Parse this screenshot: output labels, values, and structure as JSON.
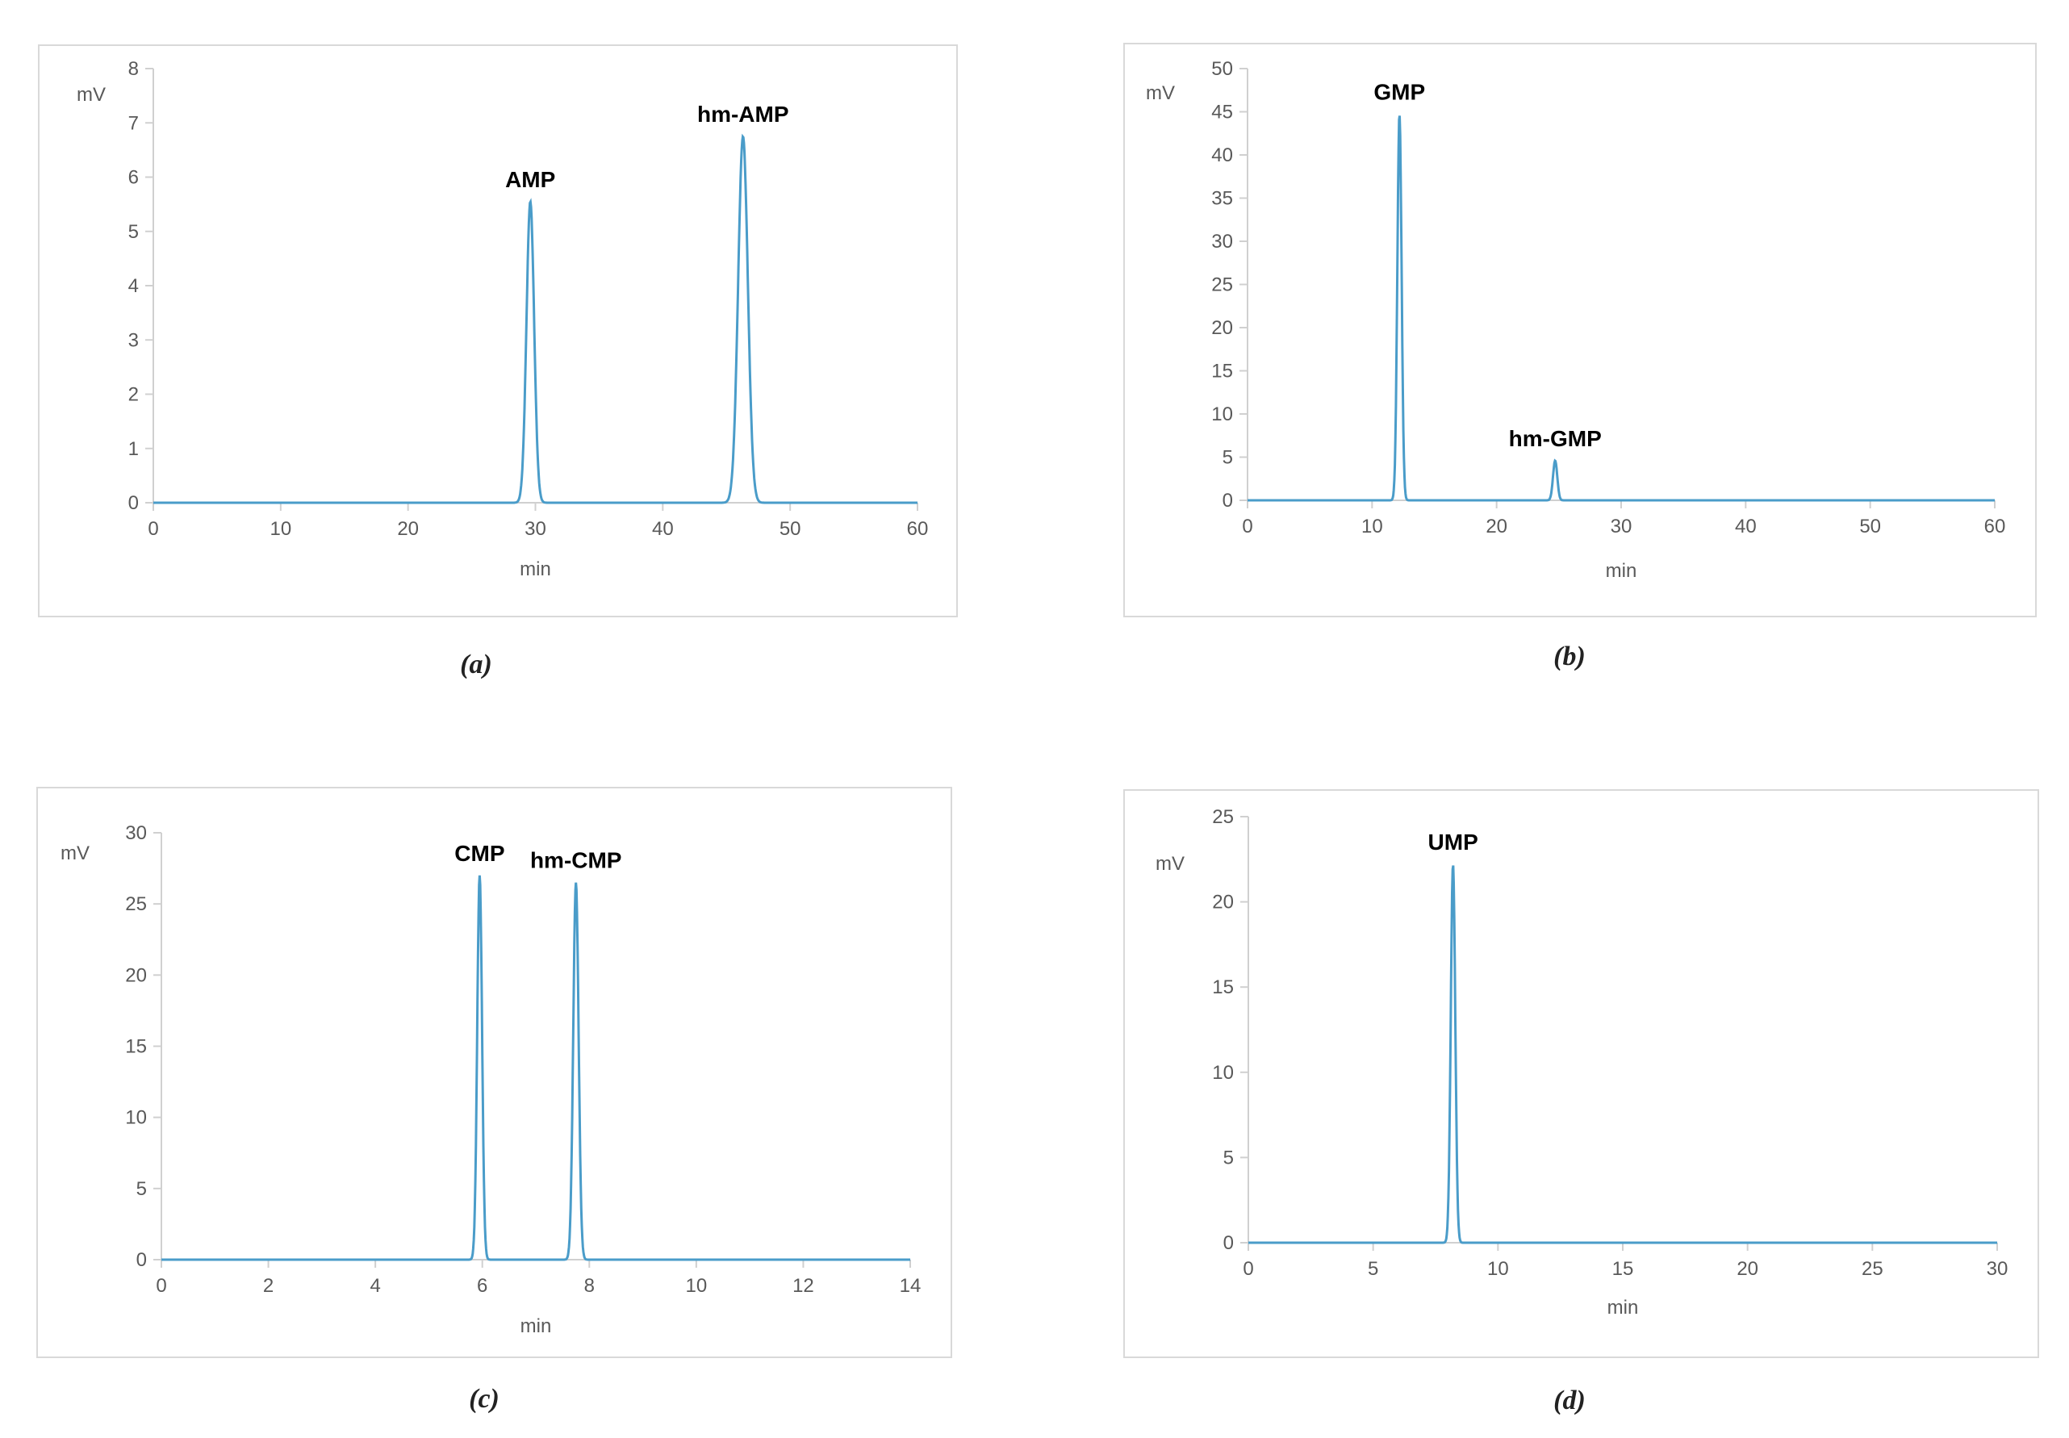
{
  "figure": {
    "panels": [
      {
        "caption": "(a)"
      },
      {
        "caption": "(b)"
      },
      {
        "caption": "(c)"
      },
      {
        "caption": "(d)"
      }
    ]
  },
  "chart_data": [
    {
      "type": "line",
      "panel_caption": "(a)",
      "ylabel": "mV",
      "xlabel": "min",
      "xlim": [
        0,
        60
      ],
      "ylim": [
        0,
        8
      ],
      "xticks": [
        0,
        10,
        20,
        30,
        40,
        50,
        60
      ],
      "yticks": [
        0,
        1,
        2,
        3,
        4,
        5,
        6,
        7,
        8
      ],
      "grid": false,
      "color": "#4a9cc9",
      "peaks": [
        {
          "label": "AMP",
          "x": 29.6,
          "y": 5.55
        },
        {
          "label": "hm-AMP",
          "x": 46.3,
          "y": 6.75
        }
      ]
    },
    {
      "type": "line",
      "panel_caption": "(b)",
      "ylabel": "mV",
      "xlabel": "min",
      "xlim": [
        0,
        60
      ],
      "ylim": [
        0,
        50
      ],
      "xticks": [
        0,
        10,
        20,
        30,
        40,
        50,
        60
      ],
      "yticks": [
        0,
        5,
        10,
        15,
        20,
        25,
        30,
        35,
        40,
        45,
        50
      ],
      "grid": false,
      "color": "#4a9cc9",
      "peaks": [
        {
          "label": "GMP",
          "x": 12.2,
          "y": 44.7
        },
        {
          "label": "hm-GMP",
          "x": 24.7,
          "y": 4.6
        }
      ]
    },
    {
      "type": "line",
      "panel_caption": "(c)",
      "ylabel": "mV",
      "xlabel": "min",
      "xlim": [
        0,
        14
      ],
      "ylim": [
        0,
        30
      ],
      "xticks": [
        0,
        2,
        4,
        6,
        8,
        10,
        12,
        14
      ],
      "yticks": [
        0,
        5,
        10,
        15,
        20,
        25,
        30
      ],
      "grid": false,
      "color": "#4a9cc9",
      "peaks": [
        {
          "label": "CMP",
          "x": 5.95,
          "y": 27.0
        },
        {
          "label": "hm-CMP",
          "x": 7.75,
          "y": 26.5
        }
      ]
    },
    {
      "type": "line",
      "panel_caption": "(d)",
      "ylabel": "mV",
      "xlabel": "min",
      "xlim": [
        0,
        30
      ],
      "ylim": [
        0,
        25
      ],
      "xticks": [
        0,
        5,
        10,
        15,
        20,
        25,
        30
      ],
      "yticks": [
        0,
        5,
        10,
        15,
        20,
        25
      ],
      "grid": false,
      "color": "#4a9cc9",
      "peaks": [
        {
          "label": "UMP",
          "x": 8.2,
          "y": 22.2
        }
      ]
    }
  ]
}
